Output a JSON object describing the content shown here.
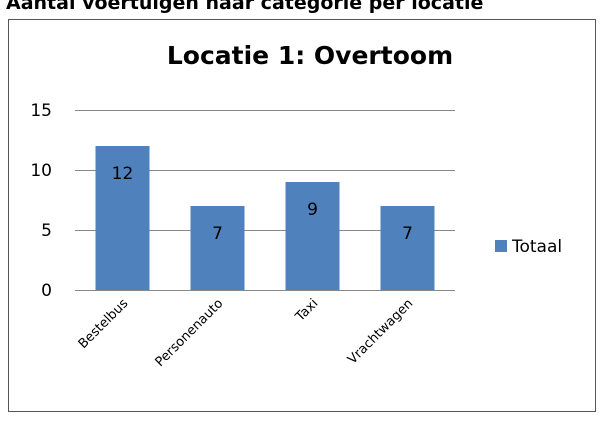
{
  "heading": "Aantal voertuigen naar categorie per locatie",
  "chart_data": {
    "type": "bar",
    "title": "Locatie 1: Overtoom",
    "categories": [
      "Bestelbus",
      "Personenauto",
      "Taxi",
      "Vrachtwagen"
    ],
    "series": [
      {
        "name": "Totaal",
        "color": "#4f81bd",
        "values": [
          12,
          7,
          9,
          7
        ]
      }
    ],
    "ylim": [
      0,
      15
    ],
    "yticks": [
      0,
      5,
      10,
      15
    ],
    "grid": true,
    "legend": "right"
  }
}
